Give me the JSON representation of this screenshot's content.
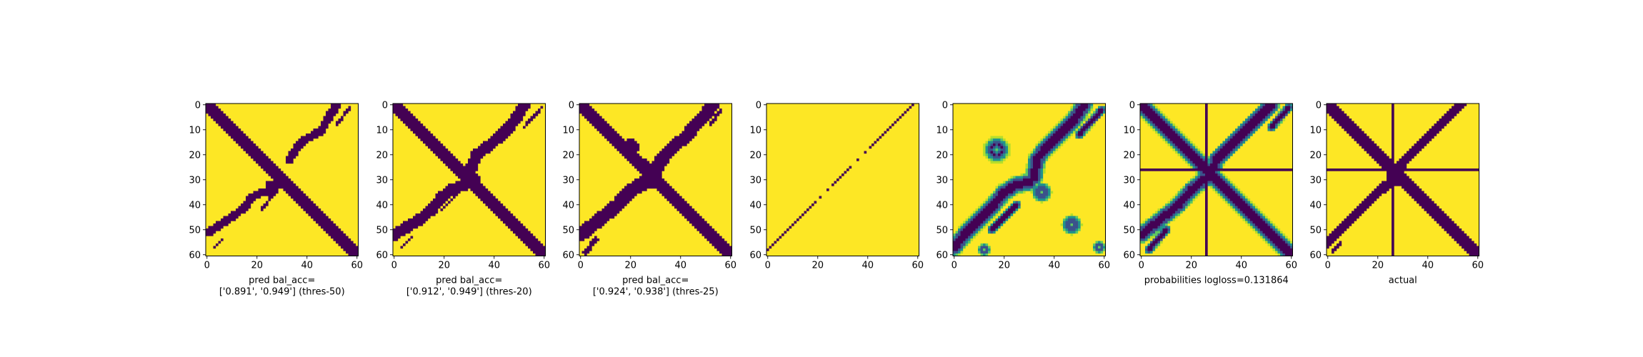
{
  "figure": {
    "colors": {
      "background": "#fde725",
      "foreground": "#440154",
      "mid_teal": "#21918c",
      "mid_green": "#5ec962",
      "light_green": "#b5de2b"
    }
  },
  "chart_data": [
    {
      "type": "heatmap",
      "xlabel_lines": [
        "pred bal_acc=",
        "['0.891', '0.949'] (thres-50)"
      ],
      "x_ticks": [
        0,
        20,
        40,
        60
      ],
      "y_ticks": [
        0,
        10,
        20,
        30,
        40,
        50,
        60
      ],
      "xlim": [
        0,
        61
      ],
      "ylim": [
        61,
        0
      ],
      "colormap": "viridis",
      "binary": true,
      "features": [
        {
          "kind": "diagonal",
          "width": 2.5
        },
        {
          "kind": "polyline",
          "width": 1.7,
          "points": [
            [
              1,
              51
            ],
            [
              5,
              48
            ],
            [
              10,
              45
            ],
            [
              15,
              41
            ],
            [
              18,
              37
            ],
            [
              22,
              35
            ],
            [
              27,
              34
            ],
            [
              25,
              32
            ],
            [
              28,
              32
            ]
          ]
        },
        {
          "kind": "polyline",
          "width": 1.7,
          "points": [
            [
              33,
              22
            ],
            [
              36,
              17
            ],
            [
              39,
              14
            ],
            [
              43,
              12
            ],
            [
              46,
              10
            ],
            [
              48,
              6
            ],
            [
              50,
              3
            ],
            [
              52,
              0
            ]
          ]
        },
        {
          "kind": "polyline",
          "width": 0.6,
          "points": [
            [
              57,
              1
            ],
            [
              52,
              8
            ]
          ]
        },
        {
          "kind": "polyline",
          "width": 0.6,
          "points": [
            [
              22,
              42
            ],
            [
              27,
              35
            ]
          ]
        },
        {
          "kind": "polyline",
          "width": 0.6,
          "points": [
            [
              3,
              57
            ],
            [
              6,
              54
            ]
          ]
        }
      ]
    },
    {
      "type": "heatmap",
      "xlabel_lines": [
        "pred bal_acc=",
        "['0.912', '0.949'] (thres-20)"
      ],
      "x_ticks": [
        0,
        20,
        40,
        60
      ],
      "y_ticks": [
        0,
        10,
        20,
        30,
        40,
        50,
        60
      ],
      "xlim": [
        0,
        61
      ],
      "ylim": [
        61,
        0
      ],
      "colormap": "viridis",
      "binary": true,
      "features": [
        {
          "kind": "diagonal",
          "width": 2.6
        },
        {
          "kind": "polyline",
          "width": 2.3,
          "points": [
            [
              0,
              52
            ],
            [
              5,
              49
            ],
            [
              10,
              46
            ],
            [
              15,
              42
            ],
            [
              19,
              37
            ],
            [
              23,
              34
            ],
            [
              28,
              32
            ],
            [
              32,
              30
            ]
          ]
        },
        {
          "kind": "polyline",
          "width": 2.3,
          "points": [
            [
              30,
              30
            ],
            [
              31,
              25
            ],
            [
              33,
              20
            ],
            [
              37,
              17
            ],
            [
              42,
              13
            ],
            [
              46,
              9
            ],
            [
              49,
              5
            ],
            [
              52,
              0
            ]
          ]
        },
        {
          "kind": "polyline",
          "width": 0.6,
          "points": [
            [
              59,
              1
            ],
            [
              52,
              9
            ]
          ]
        },
        {
          "kind": "polyline",
          "width": 0.6,
          "points": [
            [
              19,
              42
            ],
            [
              25,
              36
            ]
          ]
        },
        {
          "kind": "polyline",
          "width": 0.6,
          "points": [
            [
              3,
              57
            ],
            [
              7,
              53
            ]
          ]
        }
      ]
    },
    {
      "type": "heatmap",
      "xlabel_lines": [
        "pred bal_acc=",
        "['0.924', '0.938'] (thres-25)"
      ],
      "x_ticks": [
        0,
        20,
        40,
        60
      ],
      "y_ticks": [
        0,
        10,
        20,
        30,
        40,
        50,
        60
      ],
      "xlim": [
        0,
        61
      ],
      "ylim": [
        61,
        0
      ],
      "colormap": "viridis",
      "binary": true,
      "features": [
        {
          "kind": "diagonal",
          "width": 2.6
        },
        {
          "kind": "polyline",
          "width": 2.8,
          "points": [
            [
              0,
              52
            ],
            [
              5,
              48
            ],
            [
              10,
              44
            ],
            [
              15,
              40
            ],
            [
              19,
              35
            ],
            [
              24,
              32
            ],
            [
              29,
              30
            ]
          ]
        },
        {
          "kind": "polyline",
          "width": 2.6,
          "points": [
            [
              29,
              30
            ],
            [
              31,
              24
            ],
            [
              34,
              20
            ],
            [
              38,
              16
            ],
            [
              42,
              13
            ],
            [
              46,
              8
            ],
            [
              49,
              5
            ],
            [
              53,
              0
            ]
          ]
        },
        {
          "kind": "blob",
          "cx": 20,
          "cy": 17,
          "r": 3.4
        },
        {
          "kind": "blob",
          "cx": 29,
          "cy": 30,
          "r": 3.6
        },
        {
          "kind": "blob",
          "cx": 26,
          "cy": 24,
          "r": 2.0
        },
        {
          "kind": "polyline",
          "width": 0.6,
          "points": [
            [
              56,
              2
            ],
            [
              52,
              8
            ]
          ]
        },
        {
          "kind": "polyline",
          "width": 1.0,
          "points": [
            [
              2,
              59
            ],
            [
              6,
              54
            ]
          ]
        }
      ]
    },
    {
      "type": "heatmap",
      "xlabel_lines": [],
      "x_ticks": [
        0,
        20,
        40,
        60
      ],
      "y_ticks": [
        0,
        10,
        20,
        30,
        40,
        50,
        60
      ],
      "xlim": [
        0,
        61
      ],
      "ylim": [
        61,
        0
      ],
      "colormap": "viridis",
      "binary": true,
      "features": [
        {
          "kind": "antidiagonal_dotted",
          "gaps": [
            [
              20,
              25
            ],
            [
              34,
              40
            ]
          ]
        }
      ]
    },
    {
      "type": "heatmap",
      "xlabel_lines": [],
      "x_ticks": [
        0,
        20,
        40,
        60
      ],
      "y_ticks": [
        0,
        10,
        20,
        30,
        40,
        50,
        60
      ],
      "xlim": [
        0,
        61
      ],
      "ylim": [
        61,
        0
      ],
      "colormap": "viridis",
      "binary": false,
      "features": [
        {
          "kind": "soft_polyline",
          "width": 3.0,
          "points": [
            [
              0,
              57
            ],
            [
              5,
              51
            ],
            [
              10,
              46
            ],
            [
              15,
              41
            ],
            [
              20,
              35
            ],
            [
              25,
              32
            ],
            [
              30,
              31
            ]
          ]
        },
        {
          "kind": "soft_polyline",
          "width": 3.0,
          "points": [
            [
              32,
              29
            ],
            [
              33,
              22
            ],
            [
              36,
              18
            ],
            [
              40,
              14
            ],
            [
              44,
              10
            ],
            [
              48,
              6
            ],
            [
              52,
              0
            ]
          ]
        },
        {
          "kind": "soft_polyline",
          "width": 1.0,
          "points": [
            [
              59,
              2
            ],
            [
              50,
              12
            ]
          ]
        },
        {
          "kind": "soft_polyline",
          "width": 1.0,
          "points": [
            [
              15,
              50
            ],
            [
              25,
              40
            ]
          ]
        },
        {
          "kind": "soft_blob",
          "cx": 17,
          "cy": 18,
          "r": 4.0
        },
        {
          "kind": "soft_blob",
          "cx": 35,
          "cy": 35,
          "r": 3.0
        },
        {
          "kind": "soft_blob",
          "cx": 47,
          "cy": 48,
          "r": 3.0
        },
        {
          "kind": "soft_blob",
          "cx": 58,
          "cy": 57,
          "r": 2.0
        },
        {
          "kind": "soft_blob",
          "cx": 12,
          "cy": 58,
          "r": 2.0
        }
      ]
    },
    {
      "type": "heatmap",
      "xlabel_lines": [
        "probabilities logloss=0.131864"
      ],
      "x_ticks": [
        0,
        20,
        40,
        60
      ],
      "y_ticks": [
        0,
        10,
        20,
        30,
        40,
        50,
        60
      ],
      "xlim": [
        0,
        61
      ],
      "ylim": [
        61,
        0
      ],
      "colormap": "viridis",
      "binary": false,
      "features": [
        {
          "kind": "soft_diagonal",
          "width": 2.8
        },
        {
          "kind": "soft_polyline",
          "width": 2.8,
          "points": [
            [
              0,
              52
            ],
            [
              5,
              48
            ],
            [
              10,
              44
            ],
            [
              15,
              40
            ],
            [
              20,
              34
            ],
            [
              25,
              30
            ],
            [
              28,
              28
            ]
          ]
        },
        {
          "kind": "soft_polyline",
          "width": 2.8,
          "points": [
            [
              28,
              28
            ],
            [
              30,
              22
            ],
            [
              34,
              18
            ],
            [
              38,
              14
            ],
            [
              42,
              10
            ],
            [
              46,
              6
            ],
            [
              49,
              3
            ],
            [
              52,
              0
            ]
          ]
        },
        {
          "kind": "soft_polyline",
          "width": 1.0,
          "points": [
            [
              59,
              1
            ],
            [
              52,
              9
            ]
          ]
        },
        {
          "kind": "soft_polyline",
          "width": 1.0,
          "points": [
            [
              3,
              58
            ],
            [
              10,
              50
            ]
          ]
        },
        {
          "kind": "bar_row",
          "index": 26,
          "width": 1.6
        },
        {
          "kind": "bar_col",
          "index": 26,
          "width": 1.6
        }
      ]
    },
    {
      "type": "heatmap",
      "xlabel_lines": [
        "actual"
      ],
      "x_ticks": [
        0,
        20,
        40,
        60
      ],
      "y_ticks": [
        0,
        10,
        20,
        30,
        40,
        50,
        60
      ],
      "xlim": [
        0,
        61
      ],
      "ylim": [
        61,
        0
      ],
      "colormap": "viridis",
      "binary": true,
      "features": [
        {
          "kind": "diagonal",
          "width": 2.6
        },
        {
          "kind": "polyline",
          "width": 2.0,
          "points": [
            [
              0,
              55
            ],
            [
              5,
              50
            ],
            [
              10,
              45
            ],
            [
              15,
              40
            ],
            [
              20,
              35
            ],
            [
              25,
              31
            ],
            [
              28,
              29
            ]
          ]
        },
        {
          "kind": "polyline",
          "width": 2.0,
          "points": [
            [
              28,
              26
            ],
            [
              31,
              22
            ],
            [
              35,
              18
            ],
            [
              39,
              14
            ],
            [
              43,
              10
            ],
            [
              47,
              6
            ],
            [
              50,
              3
            ],
            [
              53,
              0
            ]
          ]
        },
        {
          "kind": "blob",
          "cx": 27,
          "cy": 29,
          "r": 3.2
        },
        {
          "kind": "polyline",
          "width": 0.6,
          "points": [
            [
              2,
              59
            ],
            [
              5,
              55
            ]
          ]
        },
        {
          "kind": "bar_row",
          "index": 26,
          "width": 1.6
        },
        {
          "kind": "bar_col",
          "index": 26,
          "width": 1.6
        }
      ]
    }
  ]
}
